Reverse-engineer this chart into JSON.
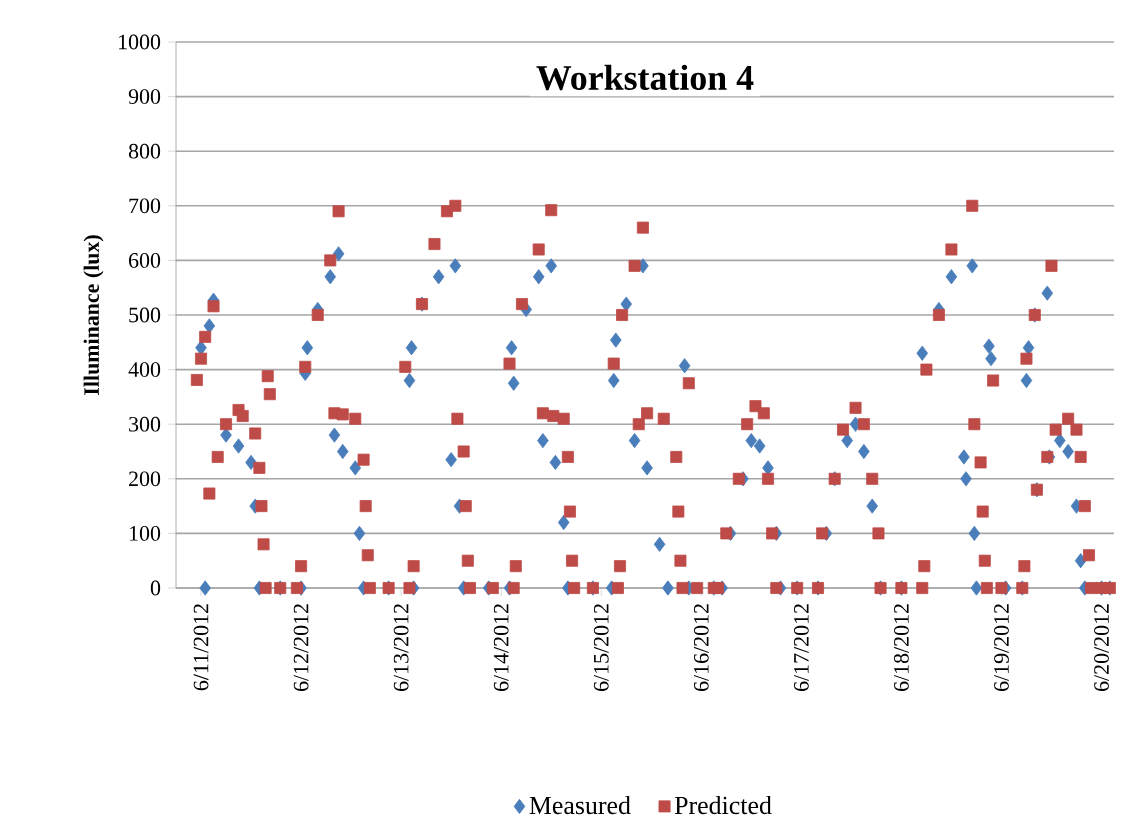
{
  "chart_data": {
    "type": "scatter",
    "title": "Workstation 4",
    "ylabel": "Illuminance (lux)",
    "xlim": [
      "2012-06-10T18:00",
      "2012-06-20T03:00"
    ],
    "xticks": [
      {
        "value": "2012-06-11",
        "label": "6/11/2012"
      },
      {
        "value": "2012-06-12",
        "label": "6/12/2012"
      },
      {
        "value": "2012-06-13",
        "label": "6/13/2012"
      },
      {
        "value": "2012-06-14",
        "label": "6/14/2012"
      },
      {
        "value": "2012-06-15",
        "label": "6/15/2012"
      },
      {
        "value": "2012-06-16",
        "label": "6/16/2012"
      },
      {
        "value": "2012-06-17",
        "label": "6/17/2012"
      },
      {
        "value": "2012-06-18",
        "label": "6/18/2012"
      },
      {
        "value": "2012-06-19",
        "label": "6/19/2012"
      },
      {
        "value": "2012-06-20",
        "label": "6/20/2012"
      }
    ],
    "ylim": [
      0,
      1000
    ],
    "yticks": [
      0,
      100,
      200,
      300,
      400,
      500,
      600,
      700,
      800,
      900,
      1000
    ],
    "grid": "y",
    "legend": "bottom",
    "series": [
      {
        "name": "Measured",
        "color": "#4a7ebb",
        "marker": "diamond",
        "x": [
          "2012-06-11T01:00",
          "2012-06-11T00:00",
          "2012-06-11T02:00",
          "2012-06-11T03:00",
          "2012-06-11T06:00",
          "2012-06-11T09:00",
          "2012-06-11T12:00",
          "2012-06-11T13:00",
          "2012-06-11T14:00",
          "2012-06-11T19:00",
          "2012-06-12T00:00",
          "2012-06-12T01:00",
          "2012-06-12T01:30",
          "2012-06-12T04:00",
          "2012-06-12T07:00",
          "2012-06-12T09:00",
          "2012-06-12T08:00",
          "2012-06-12T10:00",
          "2012-06-12T13:00",
          "2012-06-12T14:00",
          "2012-06-12T15:00",
          "2012-06-12T21:00",
          "2012-06-13T02:00",
          "2012-06-13T02:30",
          "2012-06-13T03:00",
          "2012-06-13T05:00",
          "2012-06-13T09:00",
          "2012-06-13T13:00",
          "2012-06-13T12:00",
          "2012-06-13T14:00",
          "2012-06-13T15:00",
          "2012-06-13T21:00",
          "2012-06-14T02:00",
          "2012-06-14T03:00",
          "2012-06-14T02:30",
          "2012-06-14T06:00",
          "2012-06-14T09:00",
          "2012-06-14T12:00",
          "2012-06-14T10:00",
          "2012-06-14T13:00",
          "2012-06-14T15:00",
          "2012-06-14T16:00",
          "2012-06-14T22:00",
          "2012-06-15T03:00",
          "2012-06-15T03:30",
          "2012-06-15T02:30",
          "2012-06-15T06:00",
          "2012-06-15T10:00",
          "2012-06-15T08:00",
          "2012-06-15T11:00",
          "2012-06-15T14:00",
          "2012-06-15T16:00",
          "2012-06-15T20:00",
          "2012-06-15T21:00",
          "2012-06-16T03:00",
          "2012-06-16T05:00",
          "2012-06-16T07:00",
          "2012-06-16T10:00",
          "2012-06-16T12:00",
          "2012-06-16T14:00",
          "2012-06-16T16:00",
          "2012-06-16T18:00",
          "2012-06-16T19:00",
          "2012-06-16T23:00",
          "2012-06-17T04:00",
          "2012-06-17T06:00",
          "2012-06-17T08:00",
          "2012-06-17T11:00",
          "2012-06-17T13:00",
          "2012-06-17T15:00",
          "2012-06-17T17:00",
          "2012-06-17T19:00",
          "2012-06-18T00:00",
          "2012-06-18T05:00",
          "2012-06-18T09:00",
          "2012-06-18T12:00",
          "2012-06-18T17:00",
          "2012-06-18T15:00",
          "2012-06-18T15:30",
          "2012-06-18T17:30",
          "2012-06-18T18:00",
          "2012-06-18T21:00",
          "2012-06-18T21:30",
          "2012-06-19T01:00",
          "2012-06-19T05:00",
          "2012-06-19T06:00",
          "2012-06-19T06:30",
          "2012-06-19T08:00",
          "2012-06-19T11:00",
          "2012-06-19T08:30",
          "2012-06-19T11:30",
          "2012-06-19T14:00",
          "2012-06-19T16:00",
          "2012-06-19T18:00",
          "2012-06-19T19:00",
          "2012-06-19T20:00",
          "2012-06-20T00:00",
          "2012-06-20T02:00"
        ],
        "values": [
          0,
          440,
          480,
          527,
          280,
          260,
          230,
          150,
          0,
          0,
          0,
          393,
          440,
          510,
          570,
          612,
          280,
          250,
          220,
          100,
          0,
          0,
          380,
          440,
          0,
          520,
          570,
          590,
          235,
          150,
          0,
          0,
          0,
          375,
          440,
          510,
          570,
          590,
          270,
          230,
          120,
          0,
          0,
          380,
          454,
          0,
          520,
          590,
          270,
          220,
          80,
          0,
          407,
          0,
          0,
          0,
          100,
          200,
          270,
          260,
          220,
          100,
          0,
          0,
          0,
          100,
          200,
          270,
          300,
          250,
          150,
          0,
          0,
          430,
          510,
          570,
          590,
          240,
          200,
          100,
          0,
          443,
          420,
          0,
          0,
          380,
          440,
          500,
          540,
          180,
          240,
          270,
          250,
          150,
          50,
          0,
          0,
          0
        ]
      },
      {
        "name": "Predicted",
        "color": "#be4b48",
        "marker": "square",
        "x": [
          "2012-06-10T23:00",
          "2012-06-11T00:00",
          "2012-06-11T01:00",
          "2012-06-11T03:00",
          "2012-06-11T02:00",
          "2012-06-11T04:00",
          "2012-06-11T06:00",
          "2012-06-11T09:00",
          "2012-06-11T10:00",
          "2012-06-11T13:00",
          "2012-06-11T14:00",
          "2012-06-11T14:30",
          "2012-06-11T15:00",
          "2012-06-11T15:30",
          "2012-06-11T16:00",
          "2012-06-11T16:30",
          "2012-06-11T19:00",
          "2012-06-11T23:00",
          "2012-06-12T00:00",
          "2012-06-12T01:00",
          "2012-06-12T04:00",
          "2012-06-12T07:00",
          "2012-06-12T09:00",
          "2012-06-12T08:00",
          "2012-06-12T10:00",
          "2012-06-12T13:00",
          "2012-06-12T15:00",
          "2012-06-12T15:30",
          "2012-06-12T16:00",
          "2012-06-12T16:30",
          "2012-06-12T21:00",
          "2012-06-13T02:00",
          "2012-06-13T03:00",
          "2012-06-13T01:00",
          "2012-06-13T05:00",
          "2012-06-13T08:00",
          "2012-06-13T11:00",
          "2012-06-13T13:00",
          "2012-06-13T13:30",
          "2012-06-13T15:00",
          "2012-06-13T15:30",
          "2012-06-13T16:00",
          "2012-06-13T16:30",
          "2012-06-13T22:00",
          "2012-06-14T03:00",
          "2012-06-14T03:30",
          "2012-06-14T02:00",
          "2012-06-14T05:00",
          "2012-06-14T09:00",
          "2012-06-14T12:00",
          "2012-06-14T10:00",
          "2012-06-14T12:30",
          "2012-06-14T15:00",
          "2012-06-14T16:00",
          "2012-06-14T16:30",
          "2012-06-14T17:00",
          "2012-06-14T17:30",
          "2012-06-14T22:00",
          "2012-06-15T04:00",
          "2012-06-15T04:30",
          "2012-06-15T03:00",
          "2012-06-15T05:00",
          "2012-06-15T08:00",
          "2012-06-15T10:00",
          "2012-06-15T09:00",
          "2012-06-15T11:00",
          "2012-06-15T15:00",
          "2012-06-15T18:00",
          "2012-06-15T18:30",
          "2012-06-15T19:00",
          "2012-06-15T19:30",
          "2012-06-15T23:00",
          "2012-06-16T03:00",
          "2012-06-15T21:00",
          "2012-06-16T04:00",
          "2012-06-16T06:00",
          "2012-06-16T09:00",
          "2012-06-16T11:00",
          "2012-06-16T13:00",
          "2012-06-16T15:00",
          "2012-06-16T16:00",
          "2012-06-16T17:00",
          "2012-06-16T18:00",
          "2012-06-16T23:00",
          "2012-06-17T04:00",
          "2012-06-17T05:00",
          "2012-06-17T08:00",
          "2012-06-17T10:00",
          "2012-06-17T13:00",
          "2012-06-17T15:00",
          "2012-06-17T17:00",
          "2012-06-17T18:30",
          "2012-06-17T19:00",
          "2012-06-18T00:00",
          "2012-06-18T05:00",
          "2012-06-18T05:30",
          "2012-06-18T06:00",
          "2012-06-18T09:00",
          "2012-06-18T12:00",
          "2012-06-18T17:00",
          "2012-06-18T17:30",
          "2012-06-18T19:00",
          "2012-06-18T19:30",
          "2012-06-18T20:00",
          "2012-06-18T20:30",
          "2012-06-19T00:00",
          "2012-06-19T05:00",
          "2012-06-19T05:30",
          "2012-06-18T22:00",
          "2012-06-19T06:00",
          "2012-06-19T08:00",
          "2012-06-19T12:00",
          "2012-06-19T08:30",
          "2012-06-19T11:00",
          "2012-06-19T13:00",
          "2012-06-19T16:00",
          "2012-06-19T18:00",
          "2012-06-19T19:00",
          "2012-06-19T20:00",
          "2012-06-19T21:00",
          "2012-06-19T21:30",
          "2012-06-20T00:00",
          "2012-06-20T02:00"
        ],
        "values": [
          381,
          420,
          460,
          516,
          173,
          240,
          300,
          326,
          315,
          283,
          220,
          150,
          80,
          0,
          388,
          355,
          0,
          0,
          40,
          405,
          500,
          600,
          690,
          320,
          318,
          310,
          235,
          150,
          60,
          0,
          0,
          0,
          40,
          405,
          520,
          630,
          690,
          700,
          310,
          250,
          150,
          50,
          0,
          0,
          0,
          40,
          411,
          520,
          620,
          692,
          320,
          315,
          310,
          240,
          140,
          50,
          0,
          0,
          0,
          40,
          411,
          500,
          590,
          660,
          300,
          320,
          310,
          240,
          140,
          50,
          0,
          0,
          0,
          375,
          0,
          100,
          200,
          300,
          333,
          320,
          200,
          100,
          0,
          0,
          0,
          100,
          200,
          290,
          330,
          300,
          200,
          100,
          0,
          0,
          0,
          40,
          400,
          500,
          620,
          700,
          300,
          230,
          140,
          50,
          0,
          0,
          0,
          40,
          380,
          420,
          500,
          590,
          180,
          240,
          290,
          310,
          290,
          240,
          150,
          60,
          0,
          0,
          0
        ]
      }
    ]
  }
}
